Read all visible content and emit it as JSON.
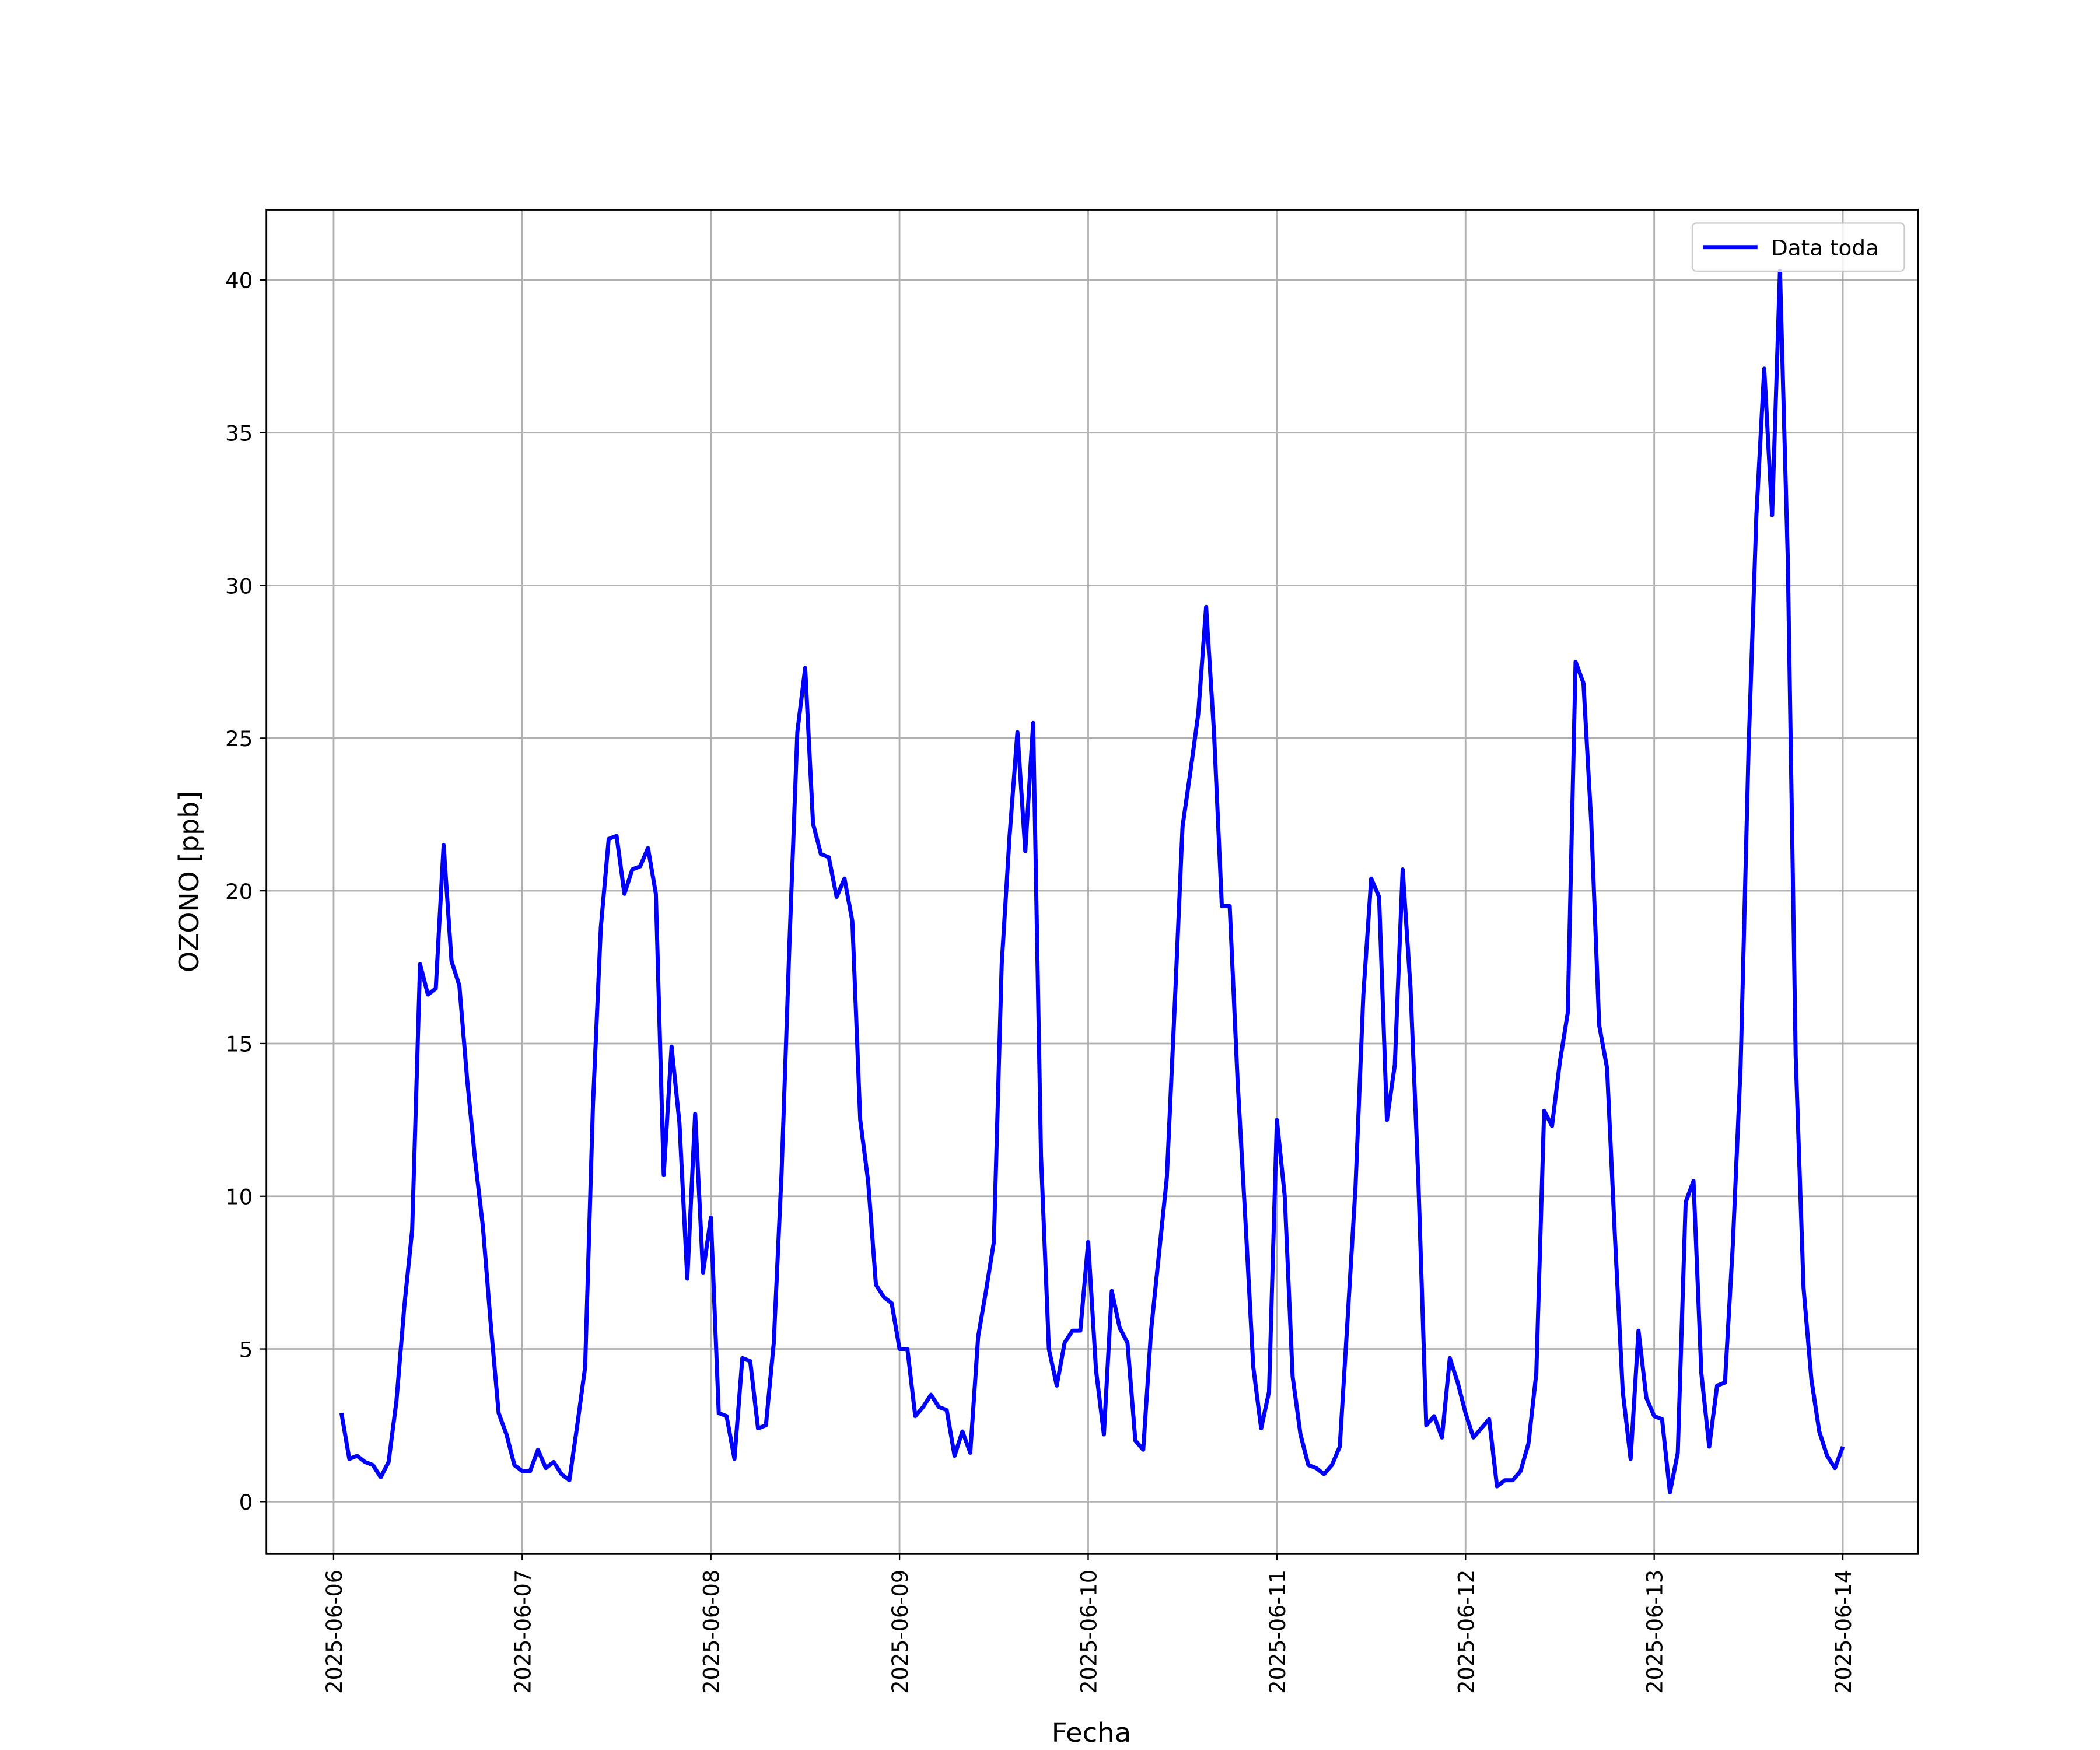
{
  "chart_data": {
    "type": "line",
    "xlabel": "Fecha",
    "ylabel": "OZONO [ppb]",
    "x": [
      "2025-06-06 01:00",
      "2025-06-06 02:00",
      "2025-06-06 03:00",
      "2025-06-06 04:00",
      "2025-06-06 05:00",
      "2025-06-06 06:00",
      "2025-06-06 07:00",
      "2025-06-06 08:00",
      "2025-06-06 09:00",
      "2025-06-06 10:00",
      "2025-06-06 11:00",
      "2025-06-06 12:00",
      "2025-06-06 13:00",
      "2025-06-06 14:00",
      "2025-06-06 15:00",
      "2025-06-06 16:00",
      "2025-06-06 17:00",
      "2025-06-06 18:00",
      "2025-06-06 19:00",
      "2025-06-06 20:00",
      "2025-06-06 21:00",
      "2025-06-06 22:00",
      "2025-06-06 23:00",
      "2025-06-07 00:00",
      "2025-06-07 01:00",
      "2025-06-07 02:00",
      "2025-06-07 03:00",
      "2025-06-07 04:00",
      "2025-06-07 05:00",
      "2025-06-07 06:00",
      "2025-06-07 07:00",
      "2025-06-07 08:00",
      "2025-06-07 09:00",
      "2025-06-07 10:00",
      "2025-06-07 11:00",
      "2025-06-07 12:00",
      "2025-06-07 13:00",
      "2025-06-07 14:00",
      "2025-06-07 15:00",
      "2025-06-07 16:00",
      "2025-06-07 17:00",
      "2025-06-07 18:00",
      "2025-06-07 19:00",
      "2025-06-07 20:00",
      "2025-06-07 21:00",
      "2025-06-07 22:00",
      "2025-06-07 23:00",
      "2025-06-08 00:00",
      "2025-06-08 01:00",
      "2025-06-08 02:00",
      "2025-06-08 03:00",
      "2025-06-08 04:00",
      "2025-06-08 05:00",
      "2025-06-08 06:00",
      "2025-06-08 07:00",
      "2025-06-08 08:00",
      "2025-06-08 09:00",
      "2025-06-08 10:00",
      "2025-06-08 11:00",
      "2025-06-08 12:00",
      "2025-06-08 13:00",
      "2025-06-08 14:00",
      "2025-06-08 15:00",
      "2025-06-08 16:00",
      "2025-06-08 17:00",
      "2025-06-08 18:00",
      "2025-06-08 19:00",
      "2025-06-08 20:00",
      "2025-06-08 21:00",
      "2025-06-08 22:00",
      "2025-06-08 23:00",
      "2025-06-09 00:00",
      "2025-06-09 01:00",
      "2025-06-09 02:00",
      "2025-06-09 03:00",
      "2025-06-09 04:00",
      "2025-06-09 05:00",
      "2025-06-09 06:00",
      "2025-06-09 07:00",
      "2025-06-09 08:00",
      "2025-06-09 09:00",
      "2025-06-09 10:00",
      "2025-06-09 11:00",
      "2025-06-09 12:00",
      "2025-06-09 13:00",
      "2025-06-09 14:00",
      "2025-06-09 15:00",
      "2025-06-09 16:00",
      "2025-06-09 17:00",
      "2025-06-09 18:00",
      "2025-06-09 19:00",
      "2025-06-09 20:00",
      "2025-06-09 21:00",
      "2025-06-09 22:00",
      "2025-06-09 23:00",
      "2025-06-10 00:00",
      "2025-06-10 01:00",
      "2025-06-10 02:00",
      "2025-06-10 03:00",
      "2025-06-10 04:00",
      "2025-06-10 05:00",
      "2025-06-10 06:00",
      "2025-06-10 07:00",
      "2025-06-10 08:00",
      "2025-06-10 09:00",
      "2025-06-10 10:00",
      "2025-06-10 11:00",
      "2025-06-10 12:00",
      "2025-06-10 13:00",
      "2025-06-10 14:00",
      "2025-06-10 15:00",
      "2025-06-10 16:00",
      "2025-06-10 17:00",
      "2025-06-10 18:00",
      "2025-06-10 19:00",
      "2025-06-10 20:00",
      "2025-06-10 21:00",
      "2025-06-10 22:00",
      "2025-06-10 23:00",
      "2025-06-11 00:00",
      "2025-06-11 01:00",
      "2025-06-11 02:00",
      "2025-06-11 03:00",
      "2025-06-11 04:00",
      "2025-06-11 05:00",
      "2025-06-11 06:00",
      "2025-06-11 07:00",
      "2025-06-11 08:00",
      "2025-06-11 09:00",
      "2025-06-11 10:00",
      "2025-06-11 11:00",
      "2025-06-11 12:00",
      "2025-06-11 13:00",
      "2025-06-11 14:00",
      "2025-06-11 15:00",
      "2025-06-11 16:00",
      "2025-06-11 17:00",
      "2025-06-11 18:00",
      "2025-06-11 19:00",
      "2025-06-11 20:00",
      "2025-06-11 21:00",
      "2025-06-11 22:00",
      "2025-06-11 23:00",
      "2025-06-12 00:00",
      "2025-06-12 01:00",
      "2025-06-12 02:00",
      "2025-06-12 03:00",
      "2025-06-12 04:00",
      "2025-06-12 05:00",
      "2025-06-12 06:00",
      "2025-06-12 07:00",
      "2025-06-12 08:00",
      "2025-06-12 09:00",
      "2025-06-12 10:00",
      "2025-06-12 11:00",
      "2025-06-12 12:00",
      "2025-06-12 13:00",
      "2025-06-12 14:00",
      "2025-06-12 15:00",
      "2025-06-12 16:00",
      "2025-06-12 17:00",
      "2025-06-12 18:00",
      "2025-06-12 19:00",
      "2025-06-12 20:00",
      "2025-06-12 21:00",
      "2025-06-12 22:00",
      "2025-06-12 23:00",
      "2025-06-13 00:00",
      "2025-06-13 01:00",
      "2025-06-13 02:00",
      "2025-06-13 03:00",
      "2025-06-13 04:00",
      "2025-06-13 05:00",
      "2025-06-13 06:00",
      "2025-06-13 07:00",
      "2025-06-13 08:00",
      "2025-06-13 09:00",
      "2025-06-13 10:00",
      "2025-06-13 11:00",
      "2025-06-13 12:00",
      "2025-06-13 13:00",
      "2025-06-13 14:00",
      "2025-06-13 15:00",
      "2025-06-13 16:00",
      "2025-06-13 17:00",
      "2025-06-13 18:00",
      "2025-06-13 19:00",
      "2025-06-13 20:00",
      "2025-06-13 21:00",
      "2025-06-13 22:00",
      "2025-06-13 23:00",
      "2025-06-14 00:00"
    ],
    "series": [
      {
        "name": "Data toda",
        "color": "#0000ff",
        "values": [
          2.9,
          1.4,
          1.5,
          1.3,
          1.2,
          0.8,
          1.3,
          3.3,
          6.4,
          8.9,
          17.6,
          16.6,
          16.8,
          21.5,
          17.7,
          16.9,
          13.8,
          11.2,
          9.0,
          5.8,
          2.9,
          2.2,
          1.2,
          1.0,
          1.0,
          1.7,
          1.1,
          1.3,
          0.9,
          0.7,
          2.5,
          4.4,
          13.0,
          18.8,
          21.7,
          21.8,
          19.9,
          20.7,
          20.8,
          21.4,
          19.9,
          10.7,
          14.9,
          12.4,
          7.3,
          12.7,
          7.5,
          9.3,
          2.9,
          2.8,
          1.4,
          4.7,
          4.6,
          2.4,
          2.5,
          5.2,
          10.8,
          18.3,
          25.2,
          27.3,
          22.2,
          21.2,
          21.1,
          19.8,
          20.4,
          19.0,
          12.5,
          10.5,
          7.1,
          6.7,
          6.5,
          5.0,
          5.0,
          2.8,
          3.1,
          3.5,
          3.1,
          3.0,
          1.5,
          2.3,
          1.6,
          5.4,
          6.9,
          8.5,
          17.6,
          21.8,
          25.2,
          21.3,
          25.5,
          11.3,
          5.0,
          3.8,
          5.2,
          5.6,
          5.6,
          8.5,
          4.3,
          2.2,
          6.9,
          5.7,
          5.2,
          2.0,
          1.7,
          5.6,
          8.1,
          10.6,
          16.2,
          22.1,
          23.9,
          25.8,
          29.3,
          25.2,
          19.5,
          19.5,
          13.8,
          9.2,
          4.4,
          2.4,
          3.6,
          12.5,
          10.0,
          4.1,
          2.2,
          1.2,
          1.1,
          0.9,
          1.2,
          1.8,
          6.0,
          10.3,
          16.6,
          20.4,
          19.8,
          12.5,
          14.3,
          20.7,
          16.8,
          10.5,
          2.5,
          2.8,
          2.1,
          4.7,
          3.9,
          2.9,
          2.1,
          2.4,
          2.7,
          0.5,
          0.7,
          0.7,
          1.0,
          1.9,
          4.2,
          12.8,
          12.3,
          14.4,
          16.0,
          27.5,
          26.8,
          22.2,
          15.6,
          14.2,
          8.7,
          3.6,
          1.4,
          5.6,
          3.4,
          2.8,
          2.7,
          0.3,
          1.6,
          9.8,
          10.5,
          4.2,
          1.8,
          3.8,
          3.9,
          8.4,
          14.3,
          24.6,
          32.3,
          37.1,
          32.3,
          40.3,
          30.8,
          14.6,
          7.0,
          4.0,
          2.3,
          1.5,
          1.1,
          1.8
        ]
      }
    ],
    "xlim": [
      "2025-06-05 15:27",
      "2025-06-14 09:33"
    ],
    "xticks": [
      "2025-06-06",
      "2025-06-07",
      "2025-06-08",
      "2025-06-09",
      "2025-06-10",
      "2025-06-11",
      "2025-06-12",
      "2025-06-13",
      "2025-06-14"
    ],
    "ylim": [
      -1.7,
      42.3
    ],
    "yticks": [
      0,
      5,
      10,
      15,
      20,
      25,
      30,
      35,
      40
    ],
    "grid": true,
    "legend": "upper right"
  }
}
